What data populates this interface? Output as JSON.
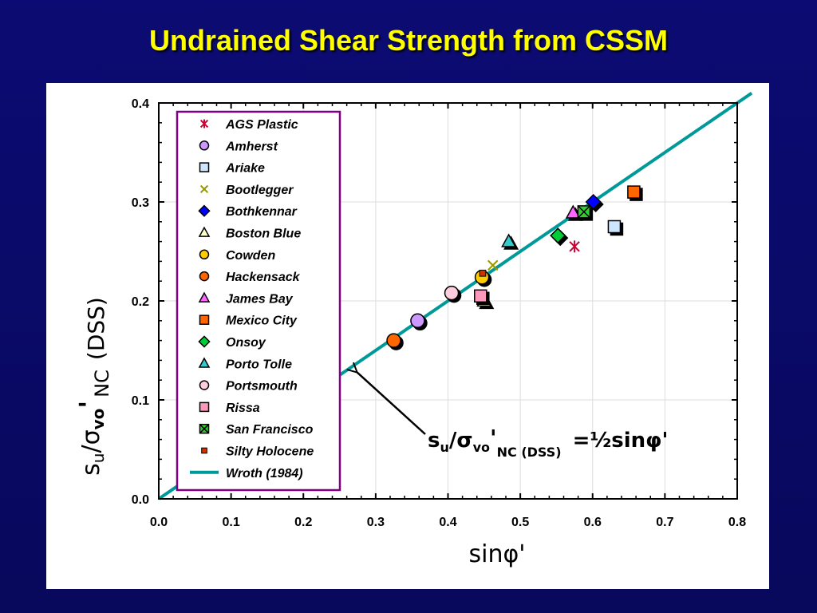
{
  "slide": {
    "title": "Undrained Shear Strength from CSSM"
  },
  "chart_data": {
    "type": "scatter",
    "xlabel": "sinφ'",
    "ylabel_parts": {
      "main": "s",
      "sub_u": "u",
      "slash_sigma": "/σ",
      "sub_vo": "vo",
      "prime": "'",
      "nc": "NC",
      "dss": "(DSS)"
    },
    "xlim": [
      0.0,
      0.8
    ],
    "ylim": [
      0.0,
      0.4
    ],
    "x_ticks": [
      "0.0",
      "0.1",
      "0.2",
      "0.3",
      "0.4",
      "0.5",
      "0.6",
      "0.7",
      "0.8"
    ],
    "y_ticks": [
      "0.0",
      "0.1",
      "0.2",
      "0.3",
      "0.4"
    ],
    "x_tick_values": [
      0.0,
      0.1,
      0.2,
      0.3,
      0.4,
      0.5,
      0.6,
      0.7,
      0.8
    ],
    "y_tick_values": [
      0.0,
      0.1,
      0.2,
      0.3,
      0.4
    ],
    "grid": true,
    "legend_position": "top-left",
    "series": [
      {
        "name": "AGS Plastic",
        "marker": "asterisk",
        "color": "#cc0033",
        "points": [
          [
            0.575,
            0.255
          ]
        ]
      },
      {
        "name": "Amherst",
        "marker": "circle",
        "color": "#cc99ff",
        "points": [
          [
            0.358,
            0.18
          ]
        ]
      },
      {
        "name": "Ariake",
        "marker": "square",
        "color": "#cce6ff",
        "points": [
          [
            0.63,
            0.275
          ]
        ]
      },
      {
        "name": "Bootlegger",
        "marker": "x",
        "color": "#999900",
        "points": [
          [
            0.462,
            0.236
          ]
        ]
      },
      {
        "name": "Bothkennar",
        "marker": "diamond",
        "color": "#0000ff",
        "points": [
          [
            0.601,
            0.3
          ]
        ]
      },
      {
        "name": "Boston Blue",
        "marker": "triangle",
        "color": "#ffffcc",
        "points": [
          [
            0.45,
            0.2
          ]
        ]
      },
      {
        "name": "Cowden",
        "marker": "circle",
        "color": "#ffcc00",
        "points": [
          [
            0.447,
            0.224
          ]
        ]
      },
      {
        "name": "Hackensack",
        "marker": "circle",
        "color": "#ff6600",
        "points": [
          [
            0.325,
            0.16
          ]
        ]
      },
      {
        "name": "James Bay",
        "marker": "triangle",
        "color": "#ff66ff",
        "points": [
          [
            0.573,
            0.289
          ]
        ]
      },
      {
        "name": "Mexico City",
        "marker": "square",
        "color": "#ff6600",
        "points": [
          [
            0.657,
            0.31
          ]
        ]
      },
      {
        "name": "Onsoy",
        "marker": "diamond",
        "color": "#00cc33",
        "points": [
          [
            0.552,
            0.266
          ]
        ]
      },
      {
        "name": "Porto Tolle",
        "marker": "triangle",
        "color": "#33cccc",
        "points": [
          [
            0.484,
            0.26
          ]
        ]
      },
      {
        "name": "Portsmouth",
        "marker": "circle",
        "color": "#ffccdd",
        "points": [
          [
            0.405,
            0.208
          ]
        ]
      },
      {
        "name": "Rissa",
        "marker": "square",
        "color": "#ff99bb",
        "points": [
          [
            0.445,
            0.205
          ]
        ]
      },
      {
        "name": "San Francisco",
        "marker": "xsquare",
        "color": "#33cc33",
        "points": [
          [
            0.588,
            0.29
          ]
        ]
      },
      {
        "name": "Silty Holocene",
        "marker": "smallsquare",
        "color": "#cc3300",
        "points": [
          [
            0.448,
            0.228
          ]
        ]
      },
      {
        "name": "Wroth (1984)",
        "marker": "line",
        "color": "#009999",
        "line": {
          "slope": 0.5,
          "x_range": [
            0.0,
            0.82
          ]
        }
      }
    ],
    "annotation": {
      "prefix_s": "s",
      "sub_u": "u",
      "slash_sigma": "/σ",
      "sub_vo": "vo",
      "prime": "'",
      "sub_nc": "NC (DSS)",
      "equals": "=½sinφ'",
      "arrow_target": [
        0.27,
        0.131
      ]
    }
  }
}
